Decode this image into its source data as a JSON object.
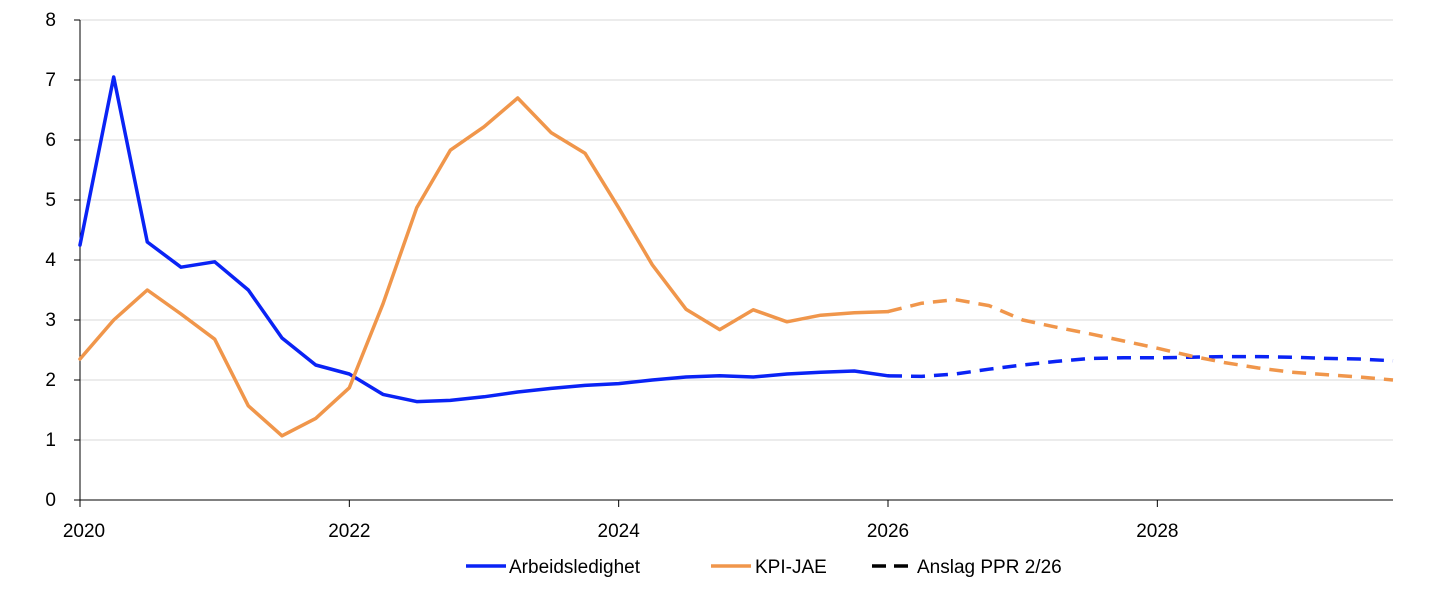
{
  "chart_data": {
    "type": "line",
    "title": "",
    "xlabel": "",
    "ylabel": "",
    "xlim": [
      2020,
      2029.75
    ],
    "ylim": [
      0,
      8
    ],
    "grid": true,
    "legend_position": "bottom-center",
    "x_ticks": [
      2020,
      2022,
      2024,
      2026,
      2028
    ],
    "x_tick_labels": [
      "2020",
      "2022",
      "2024",
      "2026",
      "2028"
    ],
    "y_ticks": [
      0,
      1,
      2,
      3,
      4,
      5,
      6,
      7,
      8
    ],
    "y_tick_labels": [
      "0",
      "1",
      "2",
      "3",
      "4",
      "5",
      "6",
      "7",
      "8"
    ],
    "forecast_start": 2026.0,
    "colors": {
      "Arbeidsledighet": "#0a23f5",
      "KPI-JAE": "#f0964b",
      "forecast_legend": "#000000",
      "grid": "#d9d9d9",
      "axis": "#000000"
    },
    "series": [
      {
        "name": "Arbeidsledighet",
        "x": [
          2020.0,
          2020.25,
          2020.5,
          2020.75,
          2021.0,
          2021.25,
          2021.5,
          2021.75,
          2022.0,
          2022.25,
          2022.5,
          2022.75,
          2023.0,
          2023.25,
          2023.5,
          2023.75,
          2024.0,
          2024.25,
          2024.5,
          2024.75,
          2025.0,
          2025.25,
          2025.5,
          2025.75,
          2026.0,
          2026.25,
          2026.5,
          2026.75,
          2027.0,
          2027.25,
          2027.5,
          2027.75,
          2028.0,
          2028.25,
          2028.5,
          2028.75,
          2029.0,
          2029.25,
          2029.5,
          2029.75
        ],
        "values": [
          4.25,
          7.05,
          4.3,
          3.88,
          3.97,
          3.5,
          2.7,
          2.25,
          2.1,
          1.76,
          1.64,
          1.66,
          1.72,
          1.8,
          1.86,
          1.91,
          1.94,
          2.0,
          2.05,
          2.07,
          2.05,
          2.1,
          2.13,
          2.15,
          2.07,
          2.06,
          2.1,
          2.18,
          2.25,
          2.31,
          2.36,
          2.37,
          2.37,
          2.38,
          2.39,
          2.39,
          2.38,
          2.36,
          2.35,
          2.32
        ]
      },
      {
        "name": "KPI-JAE",
        "x": [
          2020.0,
          2020.25,
          2020.5,
          2020.75,
          2021.0,
          2021.25,
          2021.5,
          2021.75,
          2022.0,
          2022.25,
          2022.5,
          2022.75,
          2023.0,
          2023.25,
          2023.5,
          2023.75,
          2024.0,
          2024.25,
          2024.5,
          2024.75,
          2025.0,
          2025.25,
          2025.5,
          2025.75,
          2026.0,
          2026.25,
          2026.5,
          2026.75,
          2027.0,
          2027.25,
          2027.5,
          2027.75,
          2028.0,
          2028.25,
          2028.5,
          2028.75,
          2029.0,
          2029.25,
          2029.5,
          2029.75
        ],
        "values": [
          2.35,
          3.0,
          3.5,
          3.1,
          2.68,
          1.57,
          1.07,
          1.36,
          1.87,
          3.27,
          4.87,
          5.83,
          6.22,
          6.7,
          6.12,
          5.78,
          4.87,
          3.92,
          3.18,
          2.84,
          3.17,
          2.97,
          3.08,
          3.12,
          3.14,
          3.28,
          3.34,
          3.24,
          3.0,
          2.88,
          2.77,
          2.65,
          2.53,
          2.4,
          2.29,
          2.2,
          2.13,
          2.09,
          2.05,
          2.0
        ]
      }
    ],
    "legend": [
      {
        "label": "Arbeidsledighet",
        "style": "solid"
      },
      {
        "label": "KPI-JAE",
        "style": "solid"
      },
      {
        "label": "Anslag PPR 2/26",
        "style": "dashed"
      }
    ]
  }
}
